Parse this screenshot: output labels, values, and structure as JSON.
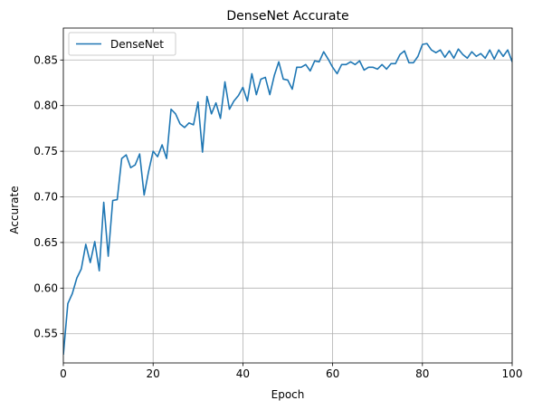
{
  "chart_data": {
    "type": "line",
    "title": "DenseNet Accurate",
    "xlabel": "Epoch",
    "ylabel": "Accurate",
    "xlim": [
      0,
      100
    ],
    "ylim": [
      0.518,
      0.885
    ],
    "xticks": [
      0,
      20,
      40,
      60,
      80,
      100
    ],
    "yticks": [
      0.55,
      0.6,
      0.65,
      0.7,
      0.75,
      0.8,
      0.85
    ],
    "ytick_labels": [
      "0.55",
      "0.60",
      "0.65",
      "0.70",
      "0.75",
      "0.80",
      "0.85"
    ],
    "grid": true,
    "legend": "top-left",
    "series": [
      {
        "name": "DenseNet",
        "color": "#1f77b4",
        "x": [
          0,
          1,
          2,
          3,
          4,
          5,
          6,
          7,
          8,
          9,
          10,
          11,
          12,
          13,
          14,
          15,
          16,
          17,
          18,
          19,
          20,
          21,
          22,
          23,
          24,
          25,
          26,
          27,
          28,
          29,
          30,
          31,
          32,
          33,
          34,
          35,
          36,
          37,
          38,
          39,
          40,
          41,
          42,
          43,
          44,
          45,
          46,
          47,
          48,
          49,
          50,
          51,
          52,
          53,
          54,
          55,
          56,
          57,
          58,
          59,
          60,
          61,
          62,
          63,
          64,
          65,
          66,
          67,
          68,
          69,
          70,
          71,
          72,
          73,
          74,
          75,
          76,
          77,
          78,
          79,
          80,
          81,
          82,
          83,
          84,
          85,
          86,
          87,
          88,
          89,
          90,
          91,
          92,
          93,
          94,
          95,
          96,
          97,
          98,
          99,
          100
        ],
        "values": [
          0.527,
          0.583,
          0.594,
          0.611,
          0.621,
          0.648,
          0.628,
          0.651,
          0.619,
          0.694,
          0.635,
          0.696,
          0.697,
          0.742,
          0.746,
          0.732,
          0.735,
          0.747,
          0.702,
          0.728,
          0.75,
          0.744,
          0.757,
          0.742,
          0.796,
          0.791,
          0.78,
          0.776,
          0.781,
          0.779,
          0.804,
          0.749,
          0.81,
          0.791,
          0.803,
          0.786,
          0.826,
          0.796,
          0.805,
          0.811,
          0.82,
          0.805,
          0.835,
          0.812,
          0.829,
          0.831,
          0.812,
          0.833,
          0.848,
          0.829,
          0.828,
          0.818,
          0.842,
          0.842,
          0.845,
          0.838,
          0.849,
          0.848,
          0.859,
          0.851,
          0.842,
          0.835,
          0.845,
          0.845,
          0.848,
          0.845,
          0.849,
          0.839,
          0.842,
          0.842,
          0.84,
          0.845,
          0.84,
          0.846,
          0.846,
          0.856,
          0.86,
          0.847,
          0.847,
          0.854,
          0.867,
          0.868,
          0.861,
          0.858,
          0.861,
          0.853,
          0.86,
          0.852,
          0.862,
          0.856,
          0.852,
          0.859,
          0.854,
          0.857,
          0.852,
          0.861,
          0.851,
          0.861,
          0.854,
          0.861,
          0.848
        ]
      }
    ]
  }
}
